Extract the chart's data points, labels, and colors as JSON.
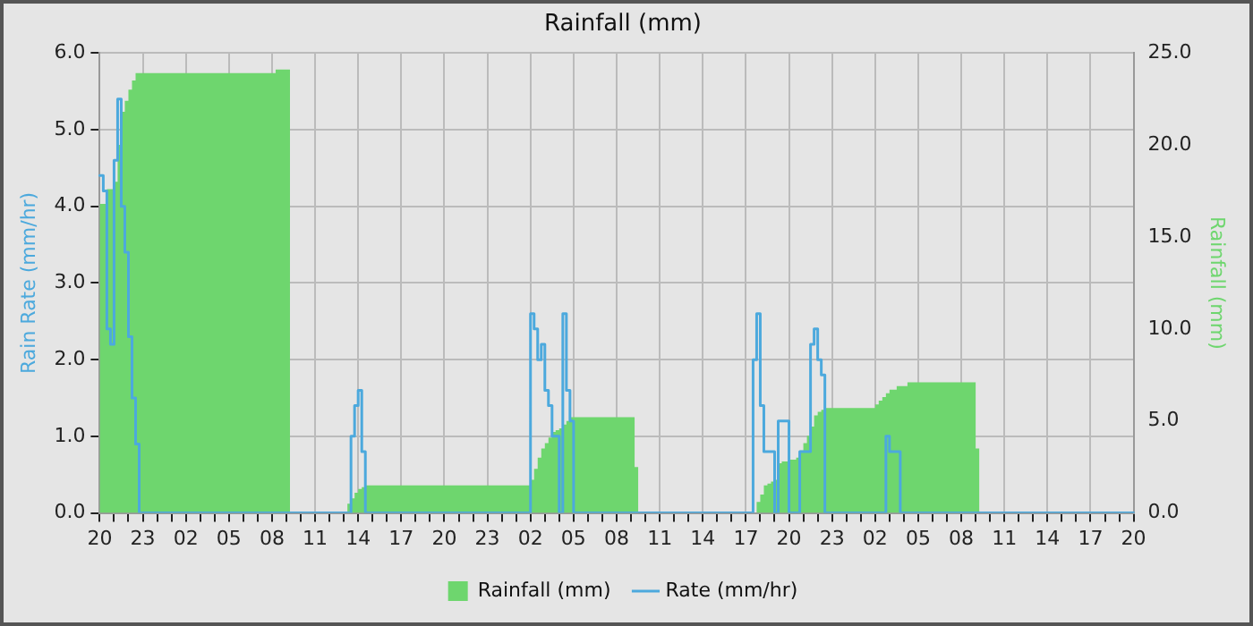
{
  "chart_data": {
    "type": "line",
    "title": "Rainfall (mm)",
    "ylabel": "Rain Rate (mm/hr)",
    "y2label": "Rainfall (mm)",
    "categories": [
      "20",
      null,
      null,
      null,
      null,
      null,
      null,
      null,
      null,
      null,
      null,
      null,
      "23",
      null,
      null,
      null,
      null,
      null,
      null,
      null,
      null,
      null,
      null,
      null,
      "02",
      null,
      null,
      null,
      null,
      null,
      null,
      null,
      null,
      null,
      null,
      null,
      "05",
      null,
      null,
      null,
      null,
      null,
      null,
      null,
      null,
      null,
      null,
      null,
      "08",
      null,
      null,
      null,
      null,
      null,
      null,
      null,
      null,
      null,
      null,
      null,
      "11",
      null,
      null,
      null,
      null,
      null,
      null,
      null,
      null,
      null,
      null,
      null,
      "14",
      null,
      null,
      null,
      null,
      null,
      null,
      null,
      null,
      null,
      null,
      null,
      "17",
      null,
      null,
      null,
      null,
      null,
      null,
      null,
      null,
      null,
      null,
      null,
      "20",
      null,
      null,
      null,
      null,
      null,
      null,
      null,
      null,
      null,
      null,
      null,
      "23",
      null,
      null,
      null,
      null,
      null,
      null,
      null,
      null,
      null,
      null,
      null,
      "02",
      null,
      null,
      null,
      null,
      null,
      null,
      null,
      null,
      null,
      null,
      null,
      "05",
      null,
      null,
      null,
      null,
      null,
      null,
      null,
      null,
      null,
      null,
      null,
      "08",
      null,
      null,
      null,
      null,
      null,
      null,
      null,
      null,
      null,
      null,
      null,
      "11",
      null,
      null,
      null,
      null,
      null,
      null,
      null,
      null,
      null,
      null,
      null,
      "14",
      null,
      null,
      null,
      null,
      null,
      null,
      null,
      null,
      null,
      null,
      null,
      "17",
      null,
      null,
      null,
      null,
      null,
      null,
      null,
      null,
      null,
      null,
      null,
      "20",
      null,
      null,
      null,
      null,
      null,
      null,
      null,
      null,
      null,
      null,
      null,
      "23",
      null,
      null,
      null,
      null,
      null,
      null,
      null,
      null,
      null,
      null,
      null,
      "02",
      null,
      null,
      null,
      null,
      null,
      null,
      null,
      null,
      null,
      null,
      null,
      "05",
      null,
      null,
      null,
      null,
      null,
      null,
      null,
      null,
      null,
      null,
      null,
      "08",
      null,
      null,
      null,
      null,
      null,
      null,
      null,
      null,
      null,
      null,
      null,
      "11",
      null,
      null,
      null,
      null,
      null,
      null,
      null,
      null,
      null,
      null,
      null,
      "14",
      null,
      null,
      null,
      null,
      null,
      null,
      null,
      null,
      null,
      null,
      null,
      "17",
      null,
      null,
      null,
      null,
      null,
      null,
      null,
      null,
      null,
      null,
      null,
      "20"
    ],
    "ylim": [
      0,
      6
    ],
    "yticks": [
      {
        "value": 0,
        "label": "0.0"
      },
      {
        "value": 1,
        "label": "1.0"
      },
      {
        "value": 2,
        "label": "2.0"
      },
      {
        "value": 3,
        "label": "3.0"
      },
      {
        "value": 4,
        "label": "4.0"
      },
      {
        "value": 5,
        "label": "5.0"
      },
      {
        "value": 6,
        "label": "6.0"
      }
    ],
    "y2lim": [
      0,
      25
    ],
    "y2ticks": [
      {
        "value": 0,
        "label": "0.0"
      },
      {
        "value": 5,
        "label": "5.0"
      },
      {
        "value": 10,
        "label": "10.0"
      },
      {
        "value": 15,
        "label": "15.0"
      },
      {
        "value": 20,
        "label": "20.0"
      },
      {
        "value": 25,
        "label": "25.0"
      }
    ],
    "grid": true,
    "legend": "bottom",
    "series": [
      {
        "name": "Rainfall (mm)",
        "type": "area",
        "axis": "y2",
        "color": "#6ed66e",
        "values": [
          16.8,
          16.8,
          17.6,
          17.6,
          18.0,
          20.0,
          21.8,
          22.4,
          23.0,
          23.5,
          23.9,
          23.9,
          23.9,
          23.9,
          23.9,
          23.9,
          23.9,
          23.9,
          23.9,
          23.9,
          23.9,
          23.9,
          23.9,
          23.9,
          23.9,
          23.9,
          23.9,
          23.9,
          23.9,
          23.9,
          23.9,
          23.9,
          23.9,
          23.9,
          23.9,
          23.9,
          23.9,
          23.9,
          23.9,
          23.9,
          23.9,
          23.9,
          23.9,
          23.9,
          23.9,
          23.9,
          23.9,
          23.9,
          23.9,
          24.1,
          24.1,
          24.1,
          24.1,
          0,
          0,
          0,
          0,
          0,
          0,
          0,
          0,
          0,
          0,
          0,
          0,
          0,
          0,
          0,
          0,
          0.5,
          0.8,
          1.1,
          1.3,
          1.4,
          1.5,
          1.5,
          1.5,
          1.5,
          1.5,
          1.5,
          1.5,
          1.5,
          1.5,
          1.5,
          1.5,
          1.5,
          1.5,
          1.5,
          1.5,
          1.5,
          1.5,
          1.5,
          1.5,
          1.5,
          1.5,
          1.5,
          1.5,
          1.5,
          1.5,
          1.5,
          1.5,
          1.5,
          1.5,
          1.5,
          1.5,
          1.5,
          1.5,
          1.5,
          1.5,
          1.5,
          1.5,
          1.5,
          1.5,
          1.5,
          1.5,
          1.5,
          1.5,
          1.5,
          1.5,
          1.5,
          1.8,
          2.4,
          3.0,
          3.5,
          3.8,
          4.1,
          4.4,
          4.5,
          4.6,
          4.8,
          5.0,
          5.2,
          5.2,
          5.2,
          5.2,
          5.2,
          5.2,
          5.2,
          5.2,
          5.2,
          5.2,
          5.2,
          5.2,
          5.2,
          5.2,
          5.2,
          5.2,
          5.2,
          5.2,
          2.5,
          0,
          0,
          0,
          0,
          0,
          0,
          0,
          0,
          0,
          0,
          0,
          0,
          0,
          0,
          0,
          0,
          0,
          0,
          0,
          0,
          0,
          0,
          0,
          0,
          0,
          0,
          0,
          0,
          0,
          0,
          0,
          0,
          0,
          0.6,
          1.0,
          1.5,
          1.6,
          1.7,
          1.8,
          2.7,
          2.8,
          2.8,
          2.9,
          2.9,
          3.0,
          3.4,
          3.8,
          4.2,
          4.7,
          5.3,
          5.5,
          5.6,
          5.7,
          5.7,
          5.7,
          5.7,
          5.7,
          5.7,
          5.7,
          5.7,
          5.7,
          5.7,
          5.7,
          5.7,
          5.7,
          5.7,
          5.9,
          6.1,
          6.3,
          6.5,
          6.7,
          6.7,
          6.9,
          6.9,
          6.9,
          7.1,
          7.1,
          7.1,
          7.1,
          7.1,
          7.1,
          7.1,
          7.1,
          7.1,
          7.1,
          7.1,
          7.1,
          7.1,
          7.1,
          7.1,
          7.1,
          7.1,
          7.1,
          7.1,
          3.5,
          0,
          0,
          0,
          0,
          0,
          0,
          0,
          0,
          0,
          0,
          0,
          0,
          0,
          0,
          0,
          0,
          0,
          0,
          0,
          0,
          0,
          0,
          0,
          0,
          0,
          0,
          0,
          0,
          0,
          0,
          0,
          0,
          0,
          0,
          0,
          0,
          0,
          0,
          0,
          0,
          0,
          0,
          0,
          0
        ]
      },
      {
        "name": "Rate (mm/hr)",
        "type": "step",
        "axis": "y",
        "color": "#4ca9dd",
        "values": [
          4.4,
          4.2,
          2.4,
          2.2,
          4.6,
          5.4,
          4.0,
          3.4,
          2.3,
          1.5,
          0.9,
          0,
          0,
          0,
          0,
          0,
          0,
          0,
          0,
          0,
          0,
          0,
          0,
          0,
          0,
          0,
          0,
          0,
          0,
          0,
          0,
          0,
          0,
          0,
          0,
          0,
          0,
          0,
          0,
          0,
          0,
          0,
          0,
          0,
          0,
          0,
          0,
          0,
          0,
          0,
          0,
          0,
          0,
          0,
          0,
          0,
          0,
          0,
          0,
          0,
          0,
          0,
          0,
          0,
          0,
          0,
          0,
          0,
          0,
          0,
          1.0,
          1.4,
          1.6,
          0.8,
          0,
          0,
          0,
          0,
          0,
          0,
          0,
          0,
          0,
          0,
          0,
          0,
          0,
          0,
          0,
          0,
          0,
          0,
          0,
          0,
          0,
          0,
          0,
          0,
          0,
          0,
          0,
          0,
          0,
          0,
          0,
          0,
          0,
          0,
          0,
          0,
          0,
          0,
          0,
          0,
          0,
          0,
          0,
          0,
          0,
          0,
          2.6,
          2.4,
          2.0,
          2.2,
          1.6,
          1.4,
          1.0,
          1.0,
          0,
          2.6,
          1.6,
          1.2,
          0,
          0,
          0,
          0,
          0,
          0,
          0,
          0,
          0,
          0,
          0,
          0,
          0,
          0,
          0,
          0,
          0,
          0,
          0,
          0,
          0,
          0,
          0,
          0,
          0,
          0,
          0,
          0,
          0,
          0,
          0,
          0,
          0,
          0,
          0,
          0,
          0,
          0,
          0,
          0,
          0,
          0,
          0,
          0,
          0,
          0,
          0,
          0,
          0,
          0,
          2.0,
          2.6,
          1.4,
          0.8,
          0.8,
          0.8,
          0,
          1.2,
          1.2,
          1.2,
          0,
          0,
          0,
          0.8,
          0.8,
          0.8,
          2.2,
          2.4,
          2.0,
          1.8,
          0,
          0,
          0,
          0,
          0,
          0,
          0,
          0,
          0,
          0,
          0,
          0,
          0,
          0,
          0,
          0,
          0,
          1.0,
          0.8,
          0.8,
          0.8,
          0,
          0,
          0,
          0,
          0,
          0,
          0,
          0,
          0,
          0,
          0,
          0,
          0,
          0,
          0,
          0,
          0,
          0,
          0,
          0,
          0,
          0,
          0,
          0,
          0,
          0,
          0,
          0,
          0,
          0,
          0,
          0,
          0,
          0,
          0,
          0,
          0,
          0,
          0,
          0,
          0,
          0,
          0,
          0,
          0,
          0,
          0,
          0,
          0,
          0,
          0,
          0,
          0,
          0,
          0,
          0,
          0,
          0,
          0,
          0,
          0,
          0,
          0,
          0,
          0,
          0
        ]
      }
    ]
  }
}
